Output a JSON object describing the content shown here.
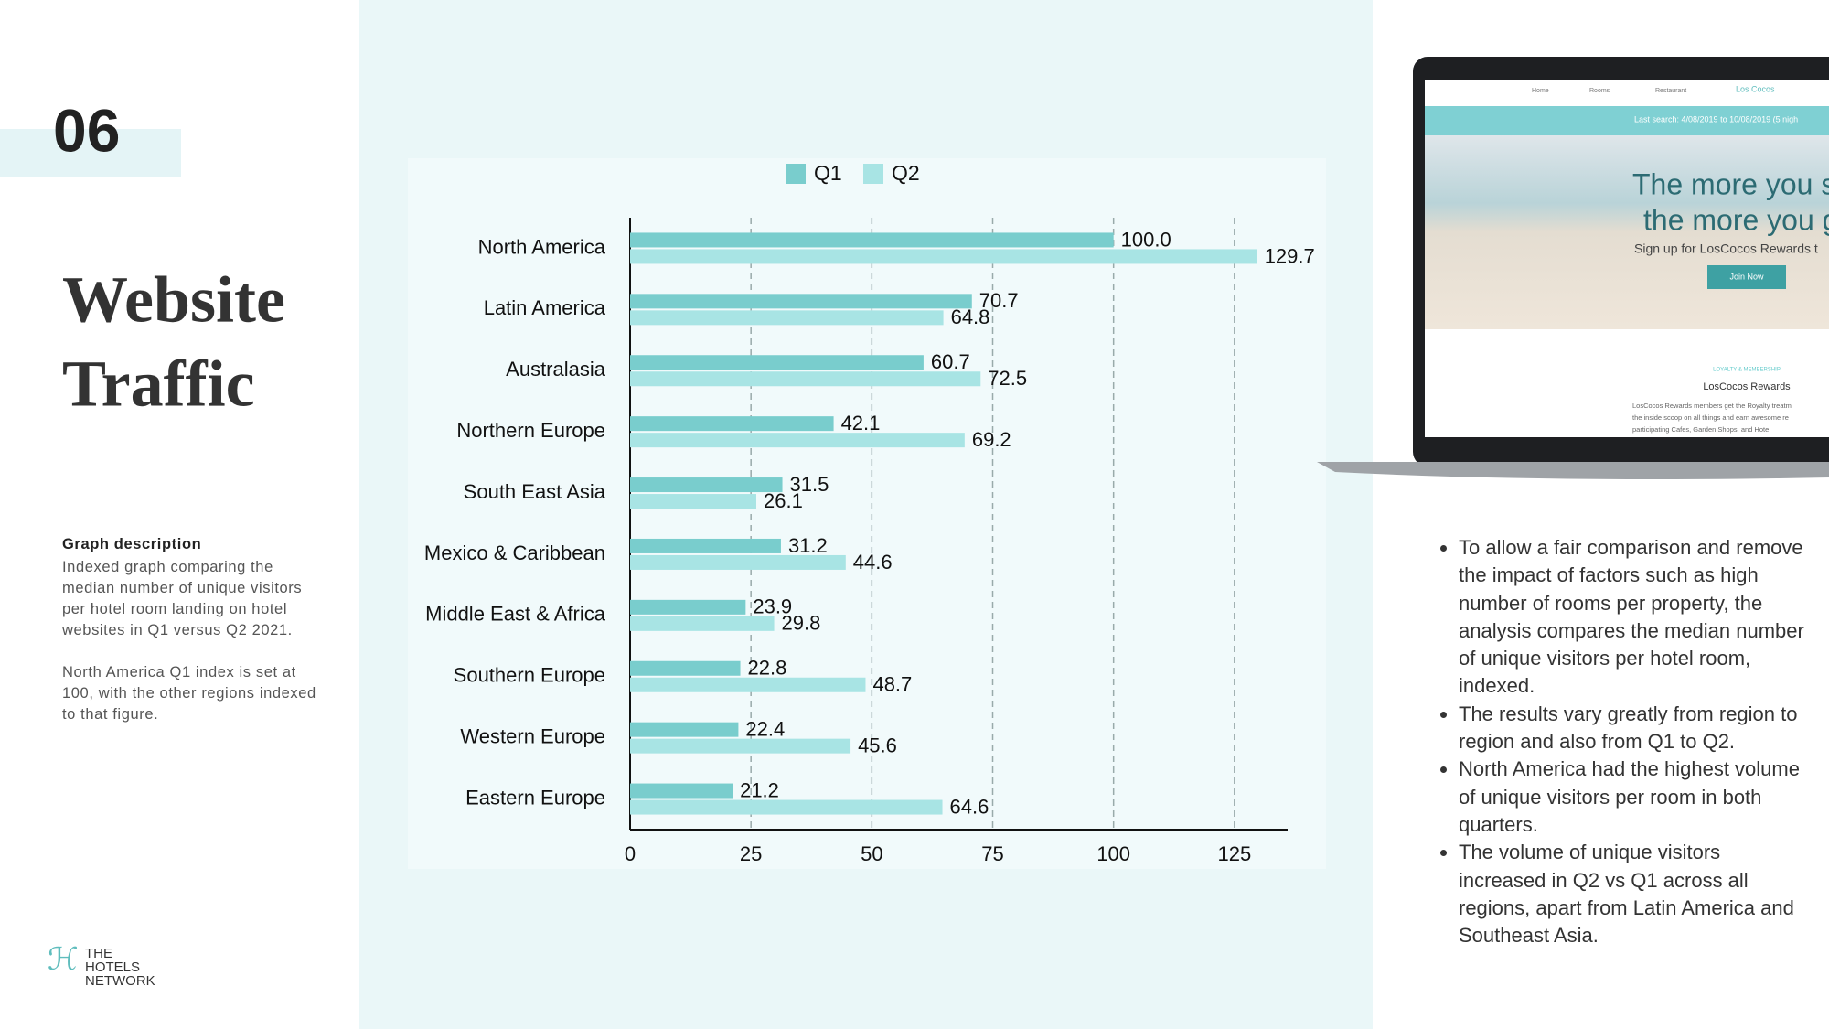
{
  "slide": {
    "number": "06",
    "title_lines": [
      "Website",
      "Traffic"
    ],
    "description_heading": "Graph description",
    "description_paragraphs": [
      "Indexed graph comparing the median number of unique visitors per hotel room landing on hotel websites in Q1 versus Q2 2021.",
      "North America Q1 index is set at 100, with the other regions indexed to that figure."
    ],
    "logo_lines": [
      "THE",
      "HOTELS",
      "NETWORK"
    ],
    "bullets": [
      "To allow a fair comparison and remove the impact of factors such as high number of rooms per property, the analysis compares the median number of unique visitors per hotel room, indexed.",
      "The results vary greatly from region to region and also from Q1 to Q2.",
      "North America had the highest volume of unique visitors per room in both quarters.",
      "The volume of unique visitors increased in Q2 vs Q1 across all regions, apart from Latin America and Southeast Asia."
    ]
  },
  "screenshot": {
    "nav": [
      "Home",
      "Rooms",
      "Restaurant",
      "Los Cocos"
    ],
    "banner": "Last search: 4/08/2019 to 10/08/2019 (5 nigh",
    "headline": [
      "The more you st",
      "the more you g"
    ],
    "subline": "Sign up for LosCocos Rewards t",
    "button": "Join Now",
    "section_label": "LOYALTY & MEMBERSHIP",
    "section_title": "LosCocos Rewards",
    "section_text": [
      "LosCocos Rewards members get the Royalty treatm",
      "the inside scoop on all things and earn awesome re",
      "participating Cafes, Garden Shops, and Hote"
    ]
  },
  "chart_data": {
    "type": "hbar",
    "categories": [
      "North America",
      "Latin America",
      "Australasia",
      "Northern Europe",
      "South East Asia",
      "Mexico & Caribbean",
      "Middle East & Africa",
      "Southern Europe",
      "Western Europe",
      "Eastern Europe"
    ],
    "series": [
      {
        "name": "Q1",
        "color": "#79cdcd",
        "values": [
          100.0,
          70.7,
          60.7,
          42.1,
          31.5,
          31.2,
          23.9,
          22.8,
          22.4,
          21.2
        ],
        "value_labels": [
          "100.0",
          "70.7",
          "60.7",
          "42.1",
          "31.5",
          "31.2",
          "23.9",
          "22.8",
          "22.4",
          "21.2"
        ]
      },
      {
        "name": "Q2",
        "color": "#a8e4e4",
        "values": [
          129.7,
          64.8,
          72.5,
          69.2,
          26.1,
          44.6,
          29.8,
          48.7,
          45.6,
          64.6
        ]
      }
    ],
    "xlim": [
      0,
      136
    ],
    "xticks": [
      0,
      25,
      50,
      75,
      100,
      125
    ],
    "grid": true,
    "legend": "top"
  }
}
